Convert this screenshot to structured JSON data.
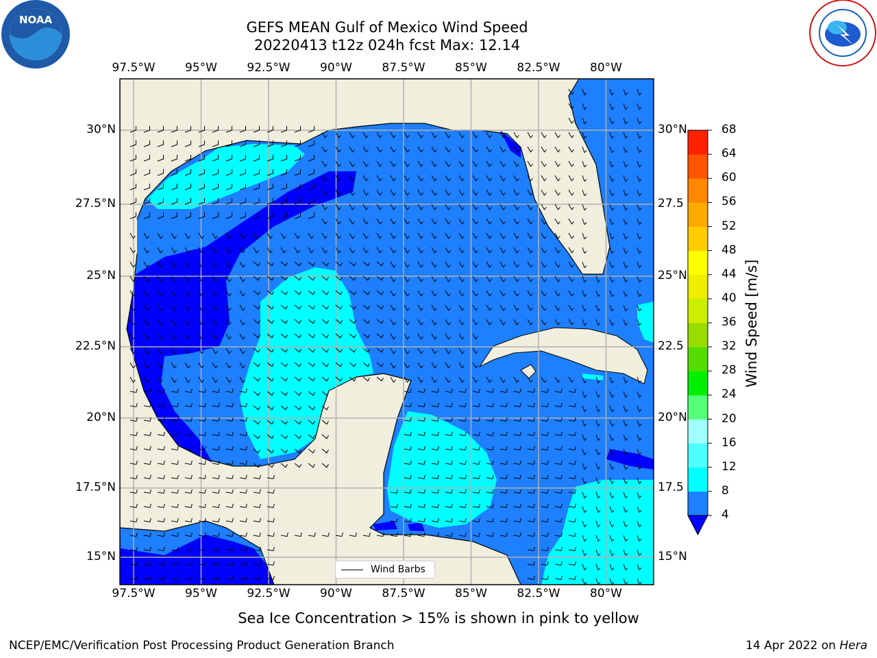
{
  "title_line1": "GEFS MEAN Gulf of Mexico Wind Speed",
  "title_line2": "20220413 t12z 024h fcst   Max: 12.14",
  "lon_labels": [
    "97.5°W",
    "95°W",
    "92.5°W",
    "90°W",
    "87.5°W",
    "85°W",
    "82.5°W",
    "80°W"
  ],
  "lat_labels_left": [
    "30°N",
    "27.5°N",
    "25°N",
    "22.5°N",
    "20°N",
    "17.5°N",
    "15°N"
  ],
  "lat_labels_right": [
    "30°N",
    "27.5",
    "25°N",
    "22.5",
    "20°N",
    "17.5",
    "15°N"
  ],
  "legend_label": "Wind Barbs",
  "colorbar": {
    "title": "Wind Speed [m/s]",
    "ticks": [
      "68",
      "64",
      "60",
      "56",
      "52",
      "48",
      "44",
      "40",
      "36",
      "32",
      "28",
      "24",
      "20",
      "16",
      "12",
      "8",
      "4"
    ],
    "colors": [
      "#0000ff",
      "#1e7fff",
      "#00ffff",
      "#4dffff",
      "#a0ffff",
      "#55ff77",
      "#00ee00",
      "#55dd00",
      "#99dd00",
      "#ccee00",
      "#eeee00",
      "#ffff00",
      "#ffcc00",
      "#ffaa00",
      "#ff8800",
      "#ff5500",
      "#ff2200",
      "#ff0000"
    ]
  },
  "note": "Sea Ice Concentration > 15% is shown in pink to yellow",
  "footer_left": "NCEP/EMC/Verification Post Processing Product Generation Branch",
  "footer_right_prefix": "14 Apr 2022 on ",
  "footer_right_machine": "Hera",
  "logos": {
    "left": "NOAA",
    "right": "NATIONAL WEATHER SERVICE"
  }
}
